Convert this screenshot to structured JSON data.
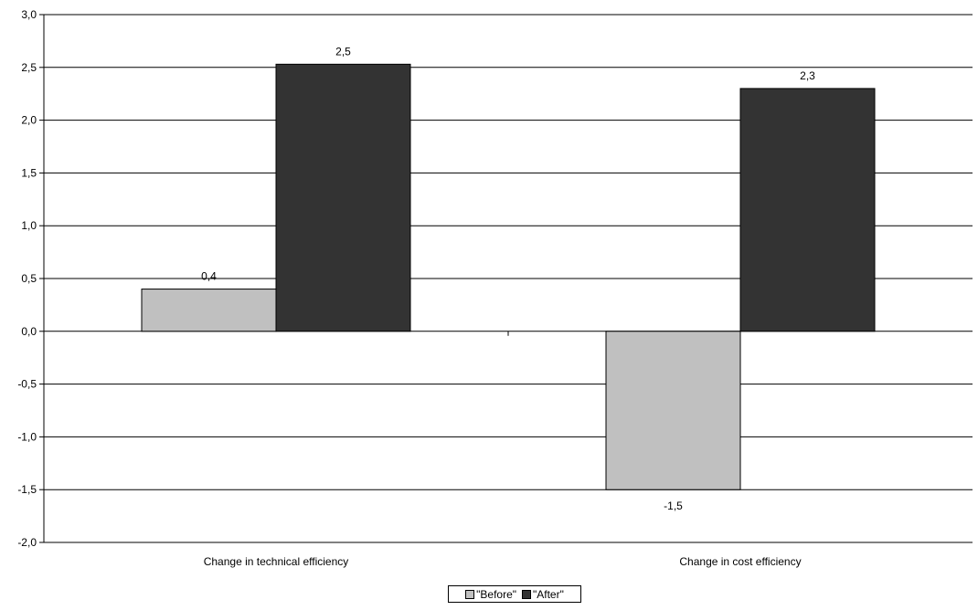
{
  "chart_data": {
    "type": "bar",
    "categories": [
      "Change in technical efficiency",
      "Change in cost efficiency"
    ],
    "series": [
      {
        "name": "\"Before\"",
        "values": [
          0.4,
          -1.5
        ],
        "labels": [
          "0,4",
          "-1,5"
        ],
        "color": "#c0c0c0"
      },
      {
        "name": "\"After\"",
        "values": [
          2.53,
          2.3
        ],
        "labels": [
          "2,5",
          "2,3"
        ],
        "color": "#333333"
      }
    ],
    "ylim": [
      -2.0,
      3.0
    ],
    "yticks": [
      -2.0,
      -1.5,
      -1.0,
      -0.5,
      0.0,
      0.5,
      1.0,
      1.5,
      2.0,
      2.5,
      3.0
    ],
    "ytick_labels": [
      "-2,0",
      "-1,5",
      "-1,0",
      "-0,5",
      "0,0",
      "0,5",
      "1,0",
      "1,5",
      "2,0",
      "2,5",
      "3,0"
    ],
    "grid": true,
    "legend_position": "bottom-center"
  }
}
